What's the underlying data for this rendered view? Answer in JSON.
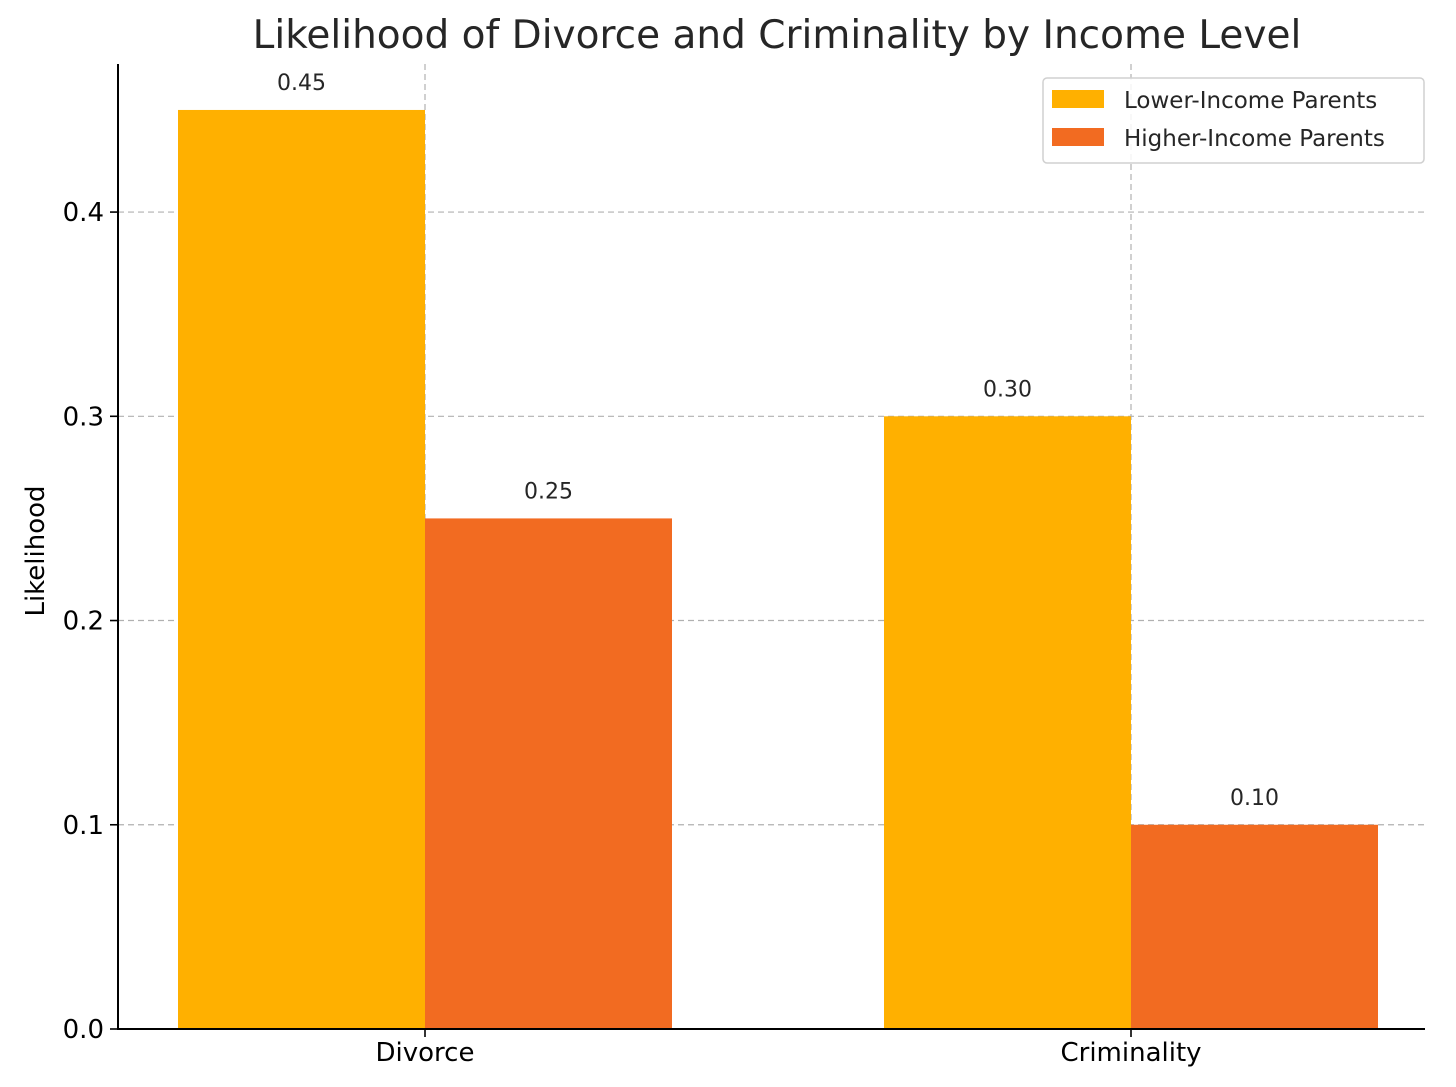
{
  "chart_data": {
    "type": "bar",
    "title": "Likelihood of Divorce and Criminality by Income Level",
    "xlabel": "",
    "ylabel": "Likelihood",
    "categories": [
      "Divorce",
      "Criminality"
    ],
    "series": [
      {
        "name": "Lower-Income Parents",
        "values": [
          0.45,
          0.3
        ],
        "color": "#ffb000",
        "labels": [
          "0.45",
          "0.30"
        ]
      },
      {
        "name": "Higher-Income Parents",
        "values": [
          0.25,
          0.1
        ],
        "color": "#f26b21",
        "labels": [
          "0.25",
          "0.10"
        ]
      }
    ],
    "ylim": [
      0,
      0.4725
    ],
    "yticks": [
      0.0,
      0.1,
      0.2,
      0.3,
      0.4
    ],
    "ytick_labels": [
      "0.0",
      "0.1",
      "0.2",
      "0.3",
      "0.4"
    ],
    "grid": true,
    "legend_position": "top-right"
  }
}
